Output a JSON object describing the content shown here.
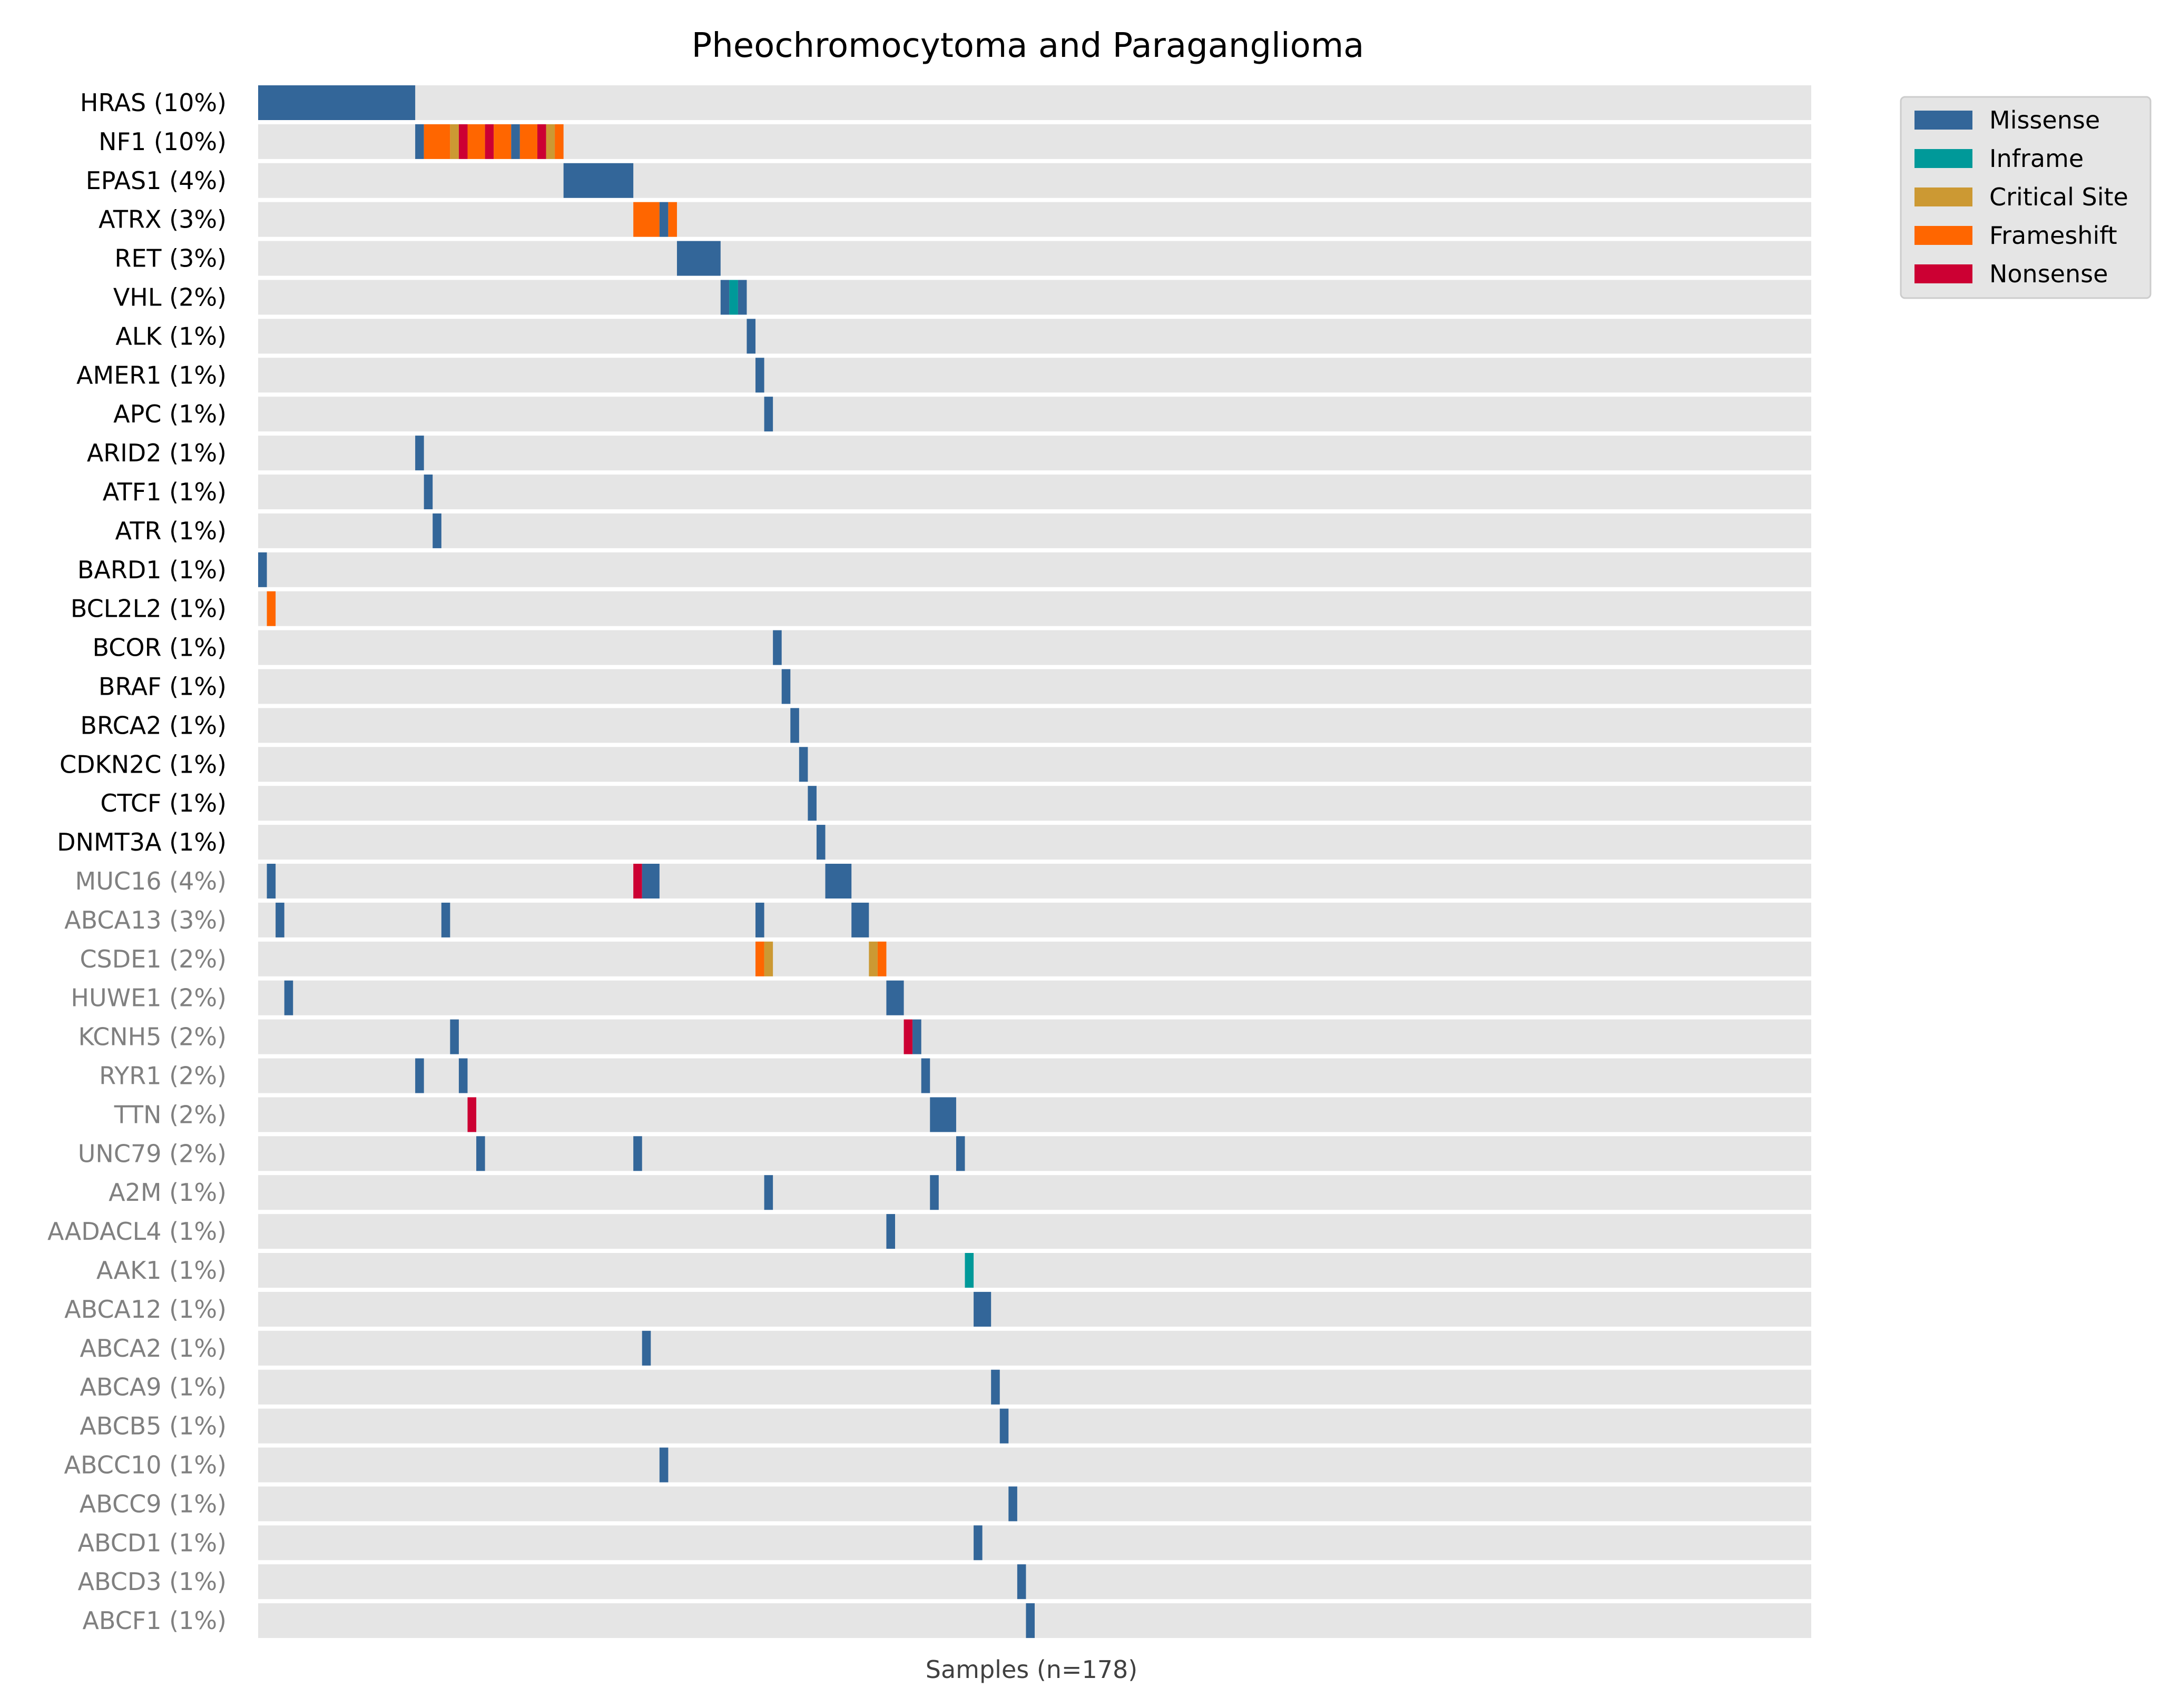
{
  "chart_data": {
    "type": "heatmap",
    "title": "Pheochromocytoma and Paraganglioma",
    "xlabel": "Samples (n=178)",
    "n_samples": 178,
    "legend": {
      "placement": "top-right, outside plot",
      "entries": [
        {
          "name": "Missense",
          "color": "#336699"
        },
        {
          "name": "Inframe",
          "color": "#009999"
        },
        {
          "name": "Critical Site",
          "color": "#cc9933"
        },
        {
          "name": "Frameshift",
          "color": "#ff6600"
        },
        {
          "name": "Nonsense",
          "color": "#cc0033"
        }
      ]
    },
    "colors": {
      "Missense": "#336699",
      "Inframe": "#009999",
      "Critical Site": "#cc9933",
      "Frameshift": "#ff6600",
      "Nonsense": "#cc0033",
      "background_row": "#e5e5e5",
      "label_primary": "#000000",
      "label_secondary": "#808080"
    },
    "genes": [
      {
        "label": "HRAS (10%)",
        "group": "primary",
        "mutations": [
          {
            "start": 0,
            "end": 18,
            "type": "Missense"
          }
        ]
      },
      {
        "label": "NF1 (10%)",
        "group": "primary",
        "mutations": [
          {
            "start": 18,
            "end": 19,
            "type": "Missense"
          },
          {
            "start": 19,
            "end": 22,
            "type": "Frameshift"
          },
          {
            "start": 22,
            "end": 23,
            "type": "Critical Site"
          },
          {
            "start": 23,
            "end": 24,
            "type": "Nonsense"
          },
          {
            "start": 24,
            "end": 26,
            "type": "Frameshift"
          },
          {
            "start": 26,
            "end": 27,
            "type": "Nonsense"
          },
          {
            "start": 27,
            "end": 29,
            "type": "Frameshift"
          },
          {
            "start": 29,
            "end": 30,
            "type": "Missense"
          },
          {
            "start": 30,
            "end": 32,
            "type": "Frameshift"
          },
          {
            "start": 32,
            "end": 33,
            "type": "Nonsense"
          },
          {
            "start": 33,
            "end": 34,
            "type": "Critical Site"
          },
          {
            "start": 34,
            "end": 35,
            "type": "Frameshift"
          }
        ]
      },
      {
        "label": "EPAS1 (4%)",
        "group": "primary",
        "mutations": [
          {
            "start": 35,
            "end": 43,
            "type": "Missense"
          }
        ]
      },
      {
        "label": "ATRX (3%)",
        "group": "primary",
        "mutations": [
          {
            "start": 43,
            "end": 46,
            "type": "Frameshift"
          },
          {
            "start": 46,
            "end": 47,
            "type": "Missense"
          },
          {
            "start": 47,
            "end": 48,
            "type": "Frameshift"
          }
        ]
      },
      {
        "label": "RET (3%)",
        "group": "primary",
        "mutations": [
          {
            "start": 48,
            "end": 53,
            "type": "Missense"
          }
        ]
      },
      {
        "label": "VHL (2%)",
        "group": "primary",
        "mutations": [
          {
            "start": 53,
            "end": 54,
            "type": "Missense"
          },
          {
            "start": 54,
            "end": 55,
            "type": "Inframe"
          },
          {
            "start": 55,
            "end": 56,
            "type": "Missense"
          }
        ]
      },
      {
        "label": "ALK (1%)",
        "group": "primary",
        "mutations": [
          {
            "start": 56,
            "end": 57,
            "type": "Missense"
          }
        ]
      },
      {
        "label": "AMER1 (1%)",
        "group": "primary",
        "mutations": [
          {
            "start": 57,
            "end": 58,
            "type": "Missense"
          }
        ]
      },
      {
        "label": "APC (1%)",
        "group": "primary",
        "mutations": [
          {
            "start": 58,
            "end": 59,
            "type": "Missense"
          }
        ]
      },
      {
        "label": "ARID2 (1%)",
        "group": "primary",
        "mutations": [
          {
            "start": 18,
            "end": 19,
            "type": "Missense"
          }
        ]
      },
      {
        "label": "ATF1 (1%)",
        "group": "primary",
        "mutations": [
          {
            "start": 19,
            "end": 20,
            "type": "Missense"
          }
        ]
      },
      {
        "label": "ATR (1%)",
        "group": "primary",
        "mutations": [
          {
            "start": 20,
            "end": 21,
            "type": "Missense"
          }
        ]
      },
      {
        "label": "BARD1 (1%)",
        "group": "primary",
        "mutations": [
          {
            "start": 0,
            "end": 1,
            "type": "Missense"
          }
        ]
      },
      {
        "label": "BCL2L2 (1%)",
        "group": "primary",
        "mutations": [
          {
            "start": 1,
            "end": 2,
            "type": "Frameshift"
          }
        ]
      },
      {
        "label": "BCOR (1%)",
        "group": "primary",
        "mutations": [
          {
            "start": 59,
            "end": 60,
            "type": "Missense"
          }
        ]
      },
      {
        "label": "BRAF (1%)",
        "group": "primary",
        "mutations": [
          {
            "start": 60,
            "end": 61,
            "type": "Missense"
          }
        ]
      },
      {
        "label": "BRCA2 (1%)",
        "group": "primary",
        "mutations": [
          {
            "start": 61,
            "end": 62,
            "type": "Missense"
          }
        ]
      },
      {
        "label": "CDKN2C (1%)",
        "group": "primary",
        "mutations": [
          {
            "start": 62,
            "end": 63,
            "type": "Missense"
          }
        ]
      },
      {
        "label": "CTCF (1%)",
        "group": "primary",
        "mutations": [
          {
            "start": 63,
            "end": 64,
            "type": "Missense"
          }
        ]
      },
      {
        "label": "DNMT3A (1%)",
        "group": "primary",
        "mutations": [
          {
            "start": 64,
            "end": 65,
            "type": "Missense"
          }
        ]
      },
      {
        "label": "MUC16 (4%)",
        "group": "secondary",
        "mutations": [
          {
            "start": 1,
            "end": 2,
            "type": "Missense"
          },
          {
            "start": 43,
            "end": 44,
            "type": "Nonsense"
          },
          {
            "start": 44,
            "end": 46,
            "type": "Missense"
          },
          {
            "start": 65,
            "end": 68,
            "type": "Missense"
          }
        ]
      },
      {
        "label": "ABCA13 (3%)",
        "group": "secondary",
        "mutations": [
          {
            "start": 2,
            "end": 3,
            "type": "Missense"
          },
          {
            "start": 21,
            "end": 22,
            "type": "Missense"
          },
          {
            "start": 57,
            "end": 58,
            "type": "Missense"
          },
          {
            "start": 68,
            "end": 70,
            "type": "Missense"
          }
        ]
      },
      {
        "label": "CSDE1 (2%)",
        "group": "secondary",
        "mutations": [
          {
            "start": 57,
            "end": 58,
            "type": "Frameshift"
          },
          {
            "start": 58,
            "end": 59,
            "type": "Critical Site"
          },
          {
            "start": 70,
            "end": 71,
            "type": "Critical Site"
          },
          {
            "start": 71,
            "end": 72,
            "type": "Frameshift"
          }
        ]
      },
      {
        "label": "HUWE1 (2%)",
        "group": "secondary",
        "mutations": [
          {
            "start": 3,
            "end": 4,
            "type": "Missense"
          },
          {
            "start": 72,
            "end": 74,
            "type": "Missense"
          }
        ]
      },
      {
        "label": "KCNH5 (2%)",
        "group": "secondary",
        "mutations": [
          {
            "start": 22,
            "end": 23,
            "type": "Missense"
          },
          {
            "start": 74,
            "end": 75,
            "type": "Nonsense"
          },
          {
            "start": 75,
            "end": 76,
            "type": "Missense"
          }
        ]
      },
      {
        "label": "RYR1 (2%)",
        "group": "secondary",
        "mutations": [
          {
            "start": 18,
            "end": 19,
            "type": "Missense"
          },
          {
            "start": 23,
            "end": 24,
            "type": "Missense"
          },
          {
            "start": 76,
            "end": 77,
            "type": "Missense"
          }
        ]
      },
      {
        "label": "TTN (2%)",
        "group": "secondary",
        "mutations": [
          {
            "start": 24,
            "end": 25,
            "type": "Nonsense"
          },
          {
            "start": 77,
            "end": 80,
            "type": "Missense"
          }
        ]
      },
      {
        "label": "UNC79 (2%)",
        "group": "secondary",
        "mutations": [
          {
            "start": 25,
            "end": 26,
            "type": "Missense"
          },
          {
            "start": 43,
            "end": 44,
            "type": "Missense"
          },
          {
            "start": 80,
            "end": 81,
            "type": "Missense"
          }
        ]
      },
      {
        "label": "A2M (1%)",
        "group": "secondary",
        "mutations": [
          {
            "start": 58,
            "end": 59,
            "type": "Missense"
          },
          {
            "start": 77,
            "end": 78,
            "type": "Missense"
          }
        ]
      },
      {
        "label": "AADACL4 (1%)",
        "group": "secondary",
        "mutations": [
          {
            "start": 72,
            "end": 73,
            "type": "Missense"
          }
        ]
      },
      {
        "label": "AAK1 (1%)",
        "group": "secondary",
        "mutations": [
          {
            "start": 81,
            "end": 82,
            "type": "Inframe"
          }
        ]
      },
      {
        "label": "ABCA12 (1%)",
        "group": "secondary",
        "mutations": [
          {
            "start": 82,
            "end": 84,
            "type": "Missense"
          }
        ]
      },
      {
        "label": "ABCA2 (1%)",
        "group": "secondary",
        "mutations": [
          {
            "start": 44,
            "end": 45,
            "type": "Missense"
          }
        ]
      },
      {
        "label": "ABCA9 (1%)",
        "group": "secondary",
        "mutations": [
          {
            "start": 84,
            "end": 85,
            "type": "Missense"
          }
        ]
      },
      {
        "label": "ABCB5 (1%)",
        "group": "secondary",
        "mutations": [
          {
            "start": 85,
            "end": 86,
            "type": "Missense"
          }
        ]
      },
      {
        "label": "ABCC10 (1%)",
        "group": "secondary",
        "mutations": [
          {
            "start": 46,
            "end": 47,
            "type": "Missense"
          }
        ]
      },
      {
        "label": "ABCC9 (1%)",
        "group": "secondary",
        "mutations": [
          {
            "start": 86,
            "end": 87,
            "type": "Missense"
          }
        ]
      },
      {
        "label": "ABCD1 (1%)",
        "group": "secondary",
        "mutations": [
          {
            "start": 82,
            "end": 83,
            "type": "Missense"
          }
        ]
      },
      {
        "label": "ABCD3 (1%)",
        "group": "secondary",
        "mutations": [
          {
            "start": 87,
            "end": 88,
            "type": "Missense"
          }
        ]
      },
      {
        "label": "ABCF1 (1%)",
        "group": "secondary",
        "mutations": [
          {
            "start": 88,
            "end": 89,
            "type": "Missense"
          }
        ]
      }
    ]
  }
}
